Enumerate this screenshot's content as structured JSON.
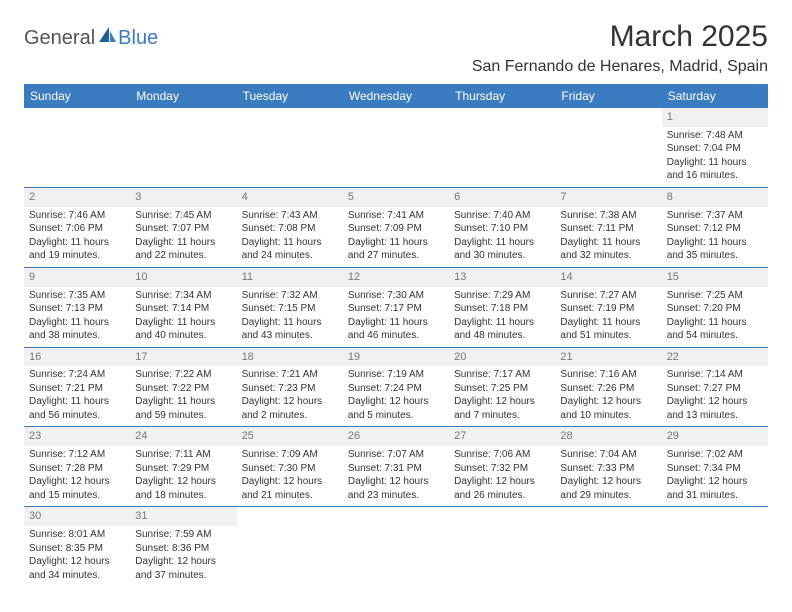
{
  "logo": {
    "part1": "General",
    "part2": "Blue"
  },
  "title": "March 2025",
  "location": "San Fernando de Henares, Madrid, Spain",
  "colors": {
    "header_bg": "#3b7bbf",
    "header_fg": "#ffffff",
    "border": "#3b7bbf",
    "daynum_bg": "#f1f1f1",
    "daynum_fg": "#777777",
    "text": "#333333"
  },
  "weekdays": [
    "Sunday",
    "Monday",
    "Tuesday",
    "Wednesday",
    "Thursday",
    "Friday",
    "Saturday"
  ],
  "weeks": [
    [
      null,
      null,
      null,
      null,
      null,
      null,
      {
        "n": "1",
        "sr": "Sunrise: 7:48 AM",
        "ss": "Sunset: 7:04 PM",
        "d1": "Daylight: 11 hours",
        "d2": "and 16 minutes."
      }
    ],
    [
      {
        "n": "2",
        "sr": "Sunrise: 7:46 AM",
        "ss": "Sunset: 7:06 PM",
        "d1": "Daylight: 11 hours",
        "d2": "and 19 minutes."
      },
      {
        "n": "3",
        "sr": "Sunrise: 7:45 AM",
        "ss": "Sunset: 7:07 PM",
        "d1": "Daylight: 11 hours",
        "d2": "and 22 minutes."
      },
      {
        "n": "4",
        "sr": "Sunrise: 7:43 AM",
        "ss": "Sunset: 7:08 PM",
        "d1": "Daylight: 11 hours",
        "d2": "and 24 minutes."
      },
      {
        "n": "5",
        "sr": "Sunrise: 7:41 AM",
        "ss": "Sunset: 7:09 PM",
        "d1": "Daylight: 11 hours",
        "d2": "and 27 minutes."
      },
      {
        "n": "6",
        "sr": "Sunrise: 7:40 AM",
        "ss": "Sunset: 7:10 PM",
        "d1": "Daylight: 11 hours",
        "d2": "and 30 minutes."
      },
      {
        "n": "7",
        "sr": "Sunrise: 7:38 AM",
        "ss": "Sunset: 7:11 PM",
        "d1": "Daylight: 11 hours",
        "d2": "and 32 minutes."
      },
      {
        "n": "8",
        "sr": "Sunrise: 7:37 AM",
        "ss": "Sunset: 7:12 PM",
        "d1": "Daylight: 11 hours",
        "d2": "and 35 minutes."
      }
    ],
    [
      {
        "n": "9",
        "sr": "Sunrise: 7:35 AM",
        "ss": "Sunset: 7:13 PM",
        "d1": "Daylight: 11 hours",
        "d2": "and 38 minutes."
      },
      {
        "n": "10",
        "sr": "Sunrise: 7:34 AM",
        "ss": "Sunset: 7:14 PM",
        "d1": "Daylight: 11 hours",
        "d2": "and 40 minutes."
      },
      {
        "n": "11",
        "sr": "Sunrise: 7:32 AM",
        "ss": "Sunset: 7:15 PM",
        "d1": "Daylight: 11 hours",
        "d2": "and 43 minutes."
      },
      {
        "n": "12",
        "sr": "Sunrise: 7:30 AM",
        "ss": "Sunset: 7:17 PM",
        "d1": "Daylight: 11 hours",
        "d2": "and 46 minutes."
      },
      {
        "n": "13",
        "sr": "Sunrise: 7:29 AM",
        "ss": "Sunset: 7:18 PM",
        "d1": "Daylight: 11 hours",
        "d2": "and 48 minutes."
      },
      {
        "n": "14",
        "sr": "Sunrise: 7:27 AM",
        "ss": "Sunset: 7:19 PM",
        "d1": "Daylight: 11 hours",
        "d2": "and 51 minutes."
      },
      {
        "n": "15",
        "sr": "Sunrise: 7:25 AM",
        "ss": "Sunset: 7:20 PM",
        "d1": "Daylight: 11 hours",
        "d2": "and 54 minutes."
      }
    ],
    [
      {
        "n": "16",
        "sr": "Sunrise: 7:24 AM",
        "ss": "Sunset: 7:21 PM",
        "d1": "Daylight: 11 hours",
        "d2": "and 56 minutes."
      },
      {
        "n": "17",
        "sr": "Sunrise: 7:22 AM",
        "ss": "Sunset: 7:22 PM",
        "d1": "Daylight: 11 hours",
        "d2": "and 59 minutes."
      },
      {
        "n": "18",
        "sr": "Sunrise: 7:21 AM",
        "ss": "Sunset: 7:23 PM",
        "d1": "Daylight: 12 hours",
        "d2": "and 2 minutes."
      },
      {
        "n": "19",
        "sr": "Sunrise: 7:19 AM",
        "ss": "Sunset: 7:24 PM",
        "d1": "Daylight: 12 hours",
        "d2": "and 5 minutes."
      },
      {
        "n": "20",
        "sr": "Sunrise: 7:17 AM",
        "ss": "Sunset: 7:25 PM",
        "d1": "Daylight: 12 hours",
        "d2": "and 7 minutes."
      },
      {
        "n": "21",
        "sr": "Sunrise: 7:16 AM",
        "ss": "Sunset: 7:26 PM",
        "d1": "Daylight: 12 hours",
        "d2": "and 10 minutes."
      },
      {
        "n": "22",
        "sr": "Sunrise: 7:14 AM",
        "ss": "Sunset: 7:27 PM",
        "d1": "Daylight: 12 hours",
        "d2": "and 13 minutes."
      }
    ],
    [
      {
        "n": "23",
        "sr": "Sunrise: 7:12 AM",
        "ss": "Sunset: 7:28 PM",
        "d1": "Daylight: 12 hours",
        "d2": "and 15 minutes."
      },
      {
        "n": "24",
        "sr": "Sunrise: 7:11 AM",
        "ss": "Sunset: 7:29 PM",
        "d1": "Daylight: 12 hours",
        "d2": "and 18 minutes."
      },
      {
        "n": "25",
        "sr": "Sunrise: 7:09 AM",
        "ss": "Sunset: 7:30 PM",
        "d1": "Daylight: 12 hours",
        "d2": "and 21 minutes."
      },
      {
        "n": "26",
        "sr": "Sunrise: 7:07 AM",
        "ss": "Sunset: 7:31 PM",
        "d1": "Daylight: 12 hours",
        "d2": "and 23 minutes."
      },
      {
        "n": "27",
        "sr": "Sunrise: 7:06 AM",
        "ss": "Sunset: 7:32 PM",
        "d1": "Daylight: 12 hours",
        "d2": "and 26 minutes."
      },
      {
        "n": "28",
        "sr": "Sunrise: 7:04 AM",
        "ss": "Sunset: 7:33 PM",
        "d1": "Daylight: 12 hours",
        "d2": "and 29 minutes."
      },
      {
        "n": "29",
        "sr": "Sunrise: 7:02 AM",
        "ss": "Sunset: 7:34 PM",
        "d1": "Daylight: 12 hours",
        "d2": "and 31 minutes."
      }
    ],
    [
      {
        "n": "30",
        "sr": "Sunrise: 8:01 AM",
        "ss": "Sunset: 8:35 PM",
        "d1": "Daylight: 12 hours",
        "d2": "and 34 minutes."
      },
      {
        "n": "31",
        "sr": "Sunrise: 7:59 AM",
        "ss": "Sunset: 8:36 PM",
        "d1": "Daylight: 12 hours",
        "d2": "and 37 minutes."
      },
      null,
      null,
      null,
      null,
      null
    ]
  ]
}
